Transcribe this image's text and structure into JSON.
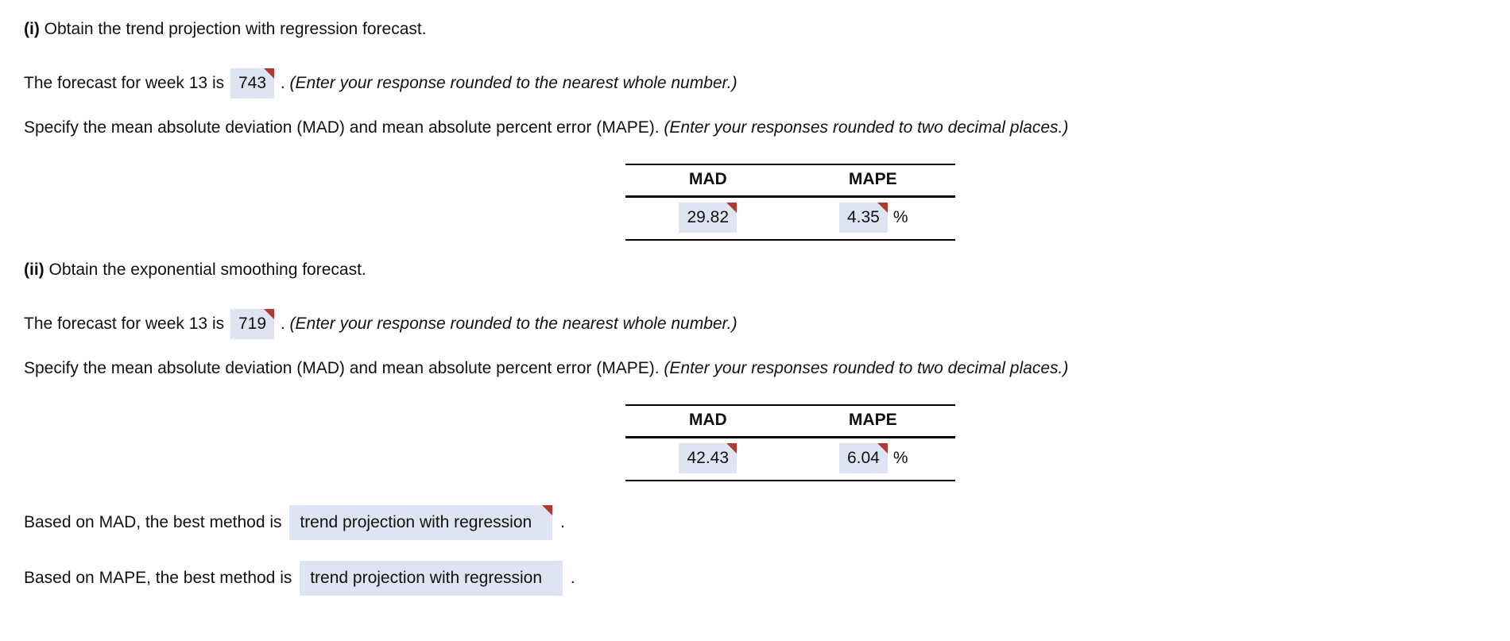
{
  "colors": {
    "answer_box_bg": "#dfe4f2",
    "correct_flag_red": "#b03a2e",
    "text": "#111111",
    "table_rule": "#000000"
  },
  "section_i": {
    "heading_prefix": "(i)",
    "heading_text": " Obtain the trend projection with regression forecast.",
    "forecast_label": "The forecast for week 13 is",
    "forecast_value": "743",
    "forecast_period": ".",
    "forecast_note": "(Enter your response rounded to the nearest whole number.)",
    "specify_text": "Specify the mean absolute deviation (MAD) and mean absolute percent error (MAPE).",
    "specify_note": "(Enter your responses rounded to two decimal places.)",
    "table": {
      "headers": [
        "MAD",
        "MAPE"
      ],
      "mad_value": "29.82",
      "mape_value": "4.35",
      "mape_unit": "%"
    }
  },
  "section_ii": {
    "heading_prefix": "(ii)",
    "heading_text": " Obtain the exponential smoothing forecast.",
    "forecast_label": "The forecast for week 13 is",
    "forecast_value": "719",
    "forecast_period": ".",
    "forecast_note": "(Enter your response rounded to the nearest whole number.)",
    "specify_text": "Specify the mean absolute deviation (MAD) and mean absolute percent error (MAPE).",
    "specify_note": "(Enter your responses rounded to two decimal places.)",
    "table": {
      "headers": [
        "MAD",
        "MAPE"
      ],
      "mad_value": "42.43",
      "mape_value": "6.04",
      "mape_unit": "%"
    }
  },
  "conclusions": {
    "mad": {
      "prefix": "Based on MAD, the best method is",
      "value": "trend projection with regression",
      "suffix": ".",
      "has_correct_flag": true
    },
    "mape": {
      "prefix": "Based on MAPE, the best method is",
      "value": "trend projection with regression",
      "suffix": ".",
      "has_correct_flag": false
    }
  }
}
